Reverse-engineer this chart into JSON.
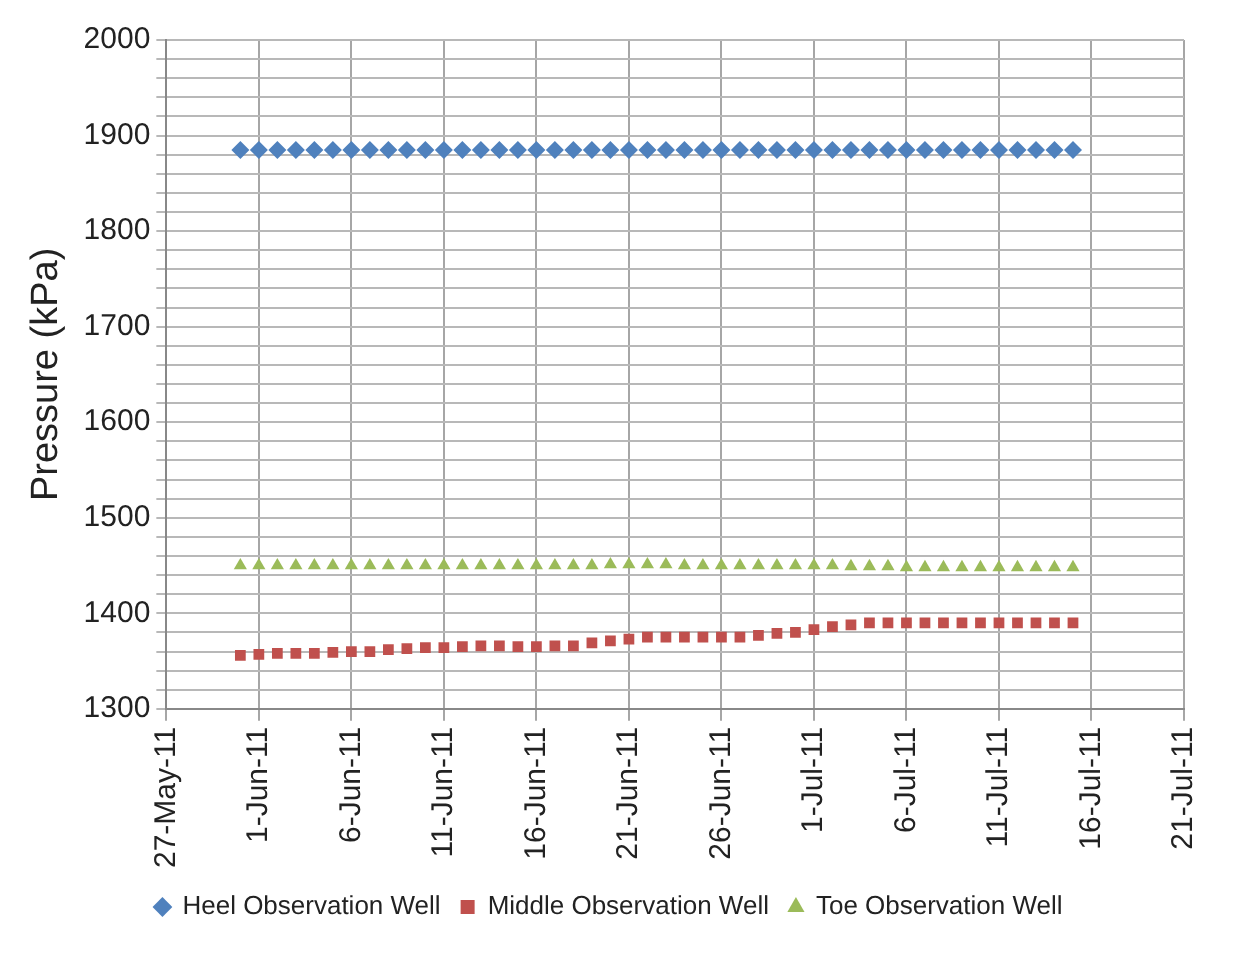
{
  "chart_data": {
    "type": "scatter",
    "ylabel": "Pressure (kPa)",
    "x": [
      "--05-31",
      "--06-01",
      "--06-02",
      "--06-03",
      "--06-04",
      "--06-05",
      "--06-06",
      "--06-07",
      "--06-08",
      "--06-09",
      "--06-10",
      "--06-11",
      "--06-12",
      "--06-13",
      "--06-14",
      "--06-15",
      "--06-16",
      "--06-17",
      "--06-18",
      "--06-19",
      "--06-20",
      "--06-21",
      "--06-22",
      "--06-23",
      "--06-24",
      "--06-25",
      "--06-26",
      "--06-27",
      "--06-28",
      "--06-29",
      "--06-30",
      "--07-01",
      "--07-02",
      "--07-03",
      "--07-04",
      "--07-05",
      "--07-06",
      "--07-07",
      "--07-08",
      "--07-09",
      "--07-10",
      "--07-11",
      "--07-12",
      "--07-13",
      "--07-14",
      "--07-15"
    ],
    "series": [
      {
        "name": "Heel Observation Well",
        "color": "#4f81bd",
        "marker": "diamond",
        "values": [
          1885,
          1885,
          1885,
          1885,
          1885,
          1885,
          1885,
          1885,
          1885,
          1885,
          1885,
          1885,
          1885,
          1885,
          1885,
          1885,
          1885,
          1885,
          1885,
          1885,
          1885,
          1885,
          1885,
          1885,
          1885,
          1885,
          1885,
          1885,
          1885,
          1885,
          1885,
          1885,
          1885,
          1885,
          1885,
          1885,
          1885,
          1885,
          1885,
          1885,
          1885,
          1885,
          1885,
          1885,
          1885,
          1885
        ]
      },
      {
        "name": "Middle Observation Well",
        "color": "#c0504d",
        "marker": "square",
        "values": [
          1356,
          1357,
          1358,
          1358,
          1358,
          1359,
          1360,
          1360,
          1362,
          1363,
          1364,
          1364,
          1365,
          1366,
          1366,
          1365,
          1365,
          1366,
          1366,
          1369,
          1371,
          1373,
          1375,
          1375,
          1375,
          1375,
          1375,
          1375,
          1377,
          1379,
          1380,
          1383,
          1386,
          1388,
          1390,
          1390,
          1390,
          1390,
          1390,
          1390,
          1390,
          1390,
          1390,
          1390,
          1390,
          1390
        ]
      },
      {
        "name": "Toe Observation Well",
        "color": "#9bbb59",
        "marker": "triangle",
        "values": [
          1450,
          1450,
          1450,
          1450,
          1450,
          1450,
          1450,
          1450,
          1450,
          1450,
          1450,
          1450,
          1450,
          1450,
          1450,
          1450,
          1450,
          1450,
          1450,
          1450,
          1451,
          1451,
          1451,
          1451,
          1450,
          1450,
          1450,
          1450,
          1450,
          1450,
          1450,
          1450,
          1450,
          1449,
          1449,
          1449,
          1448,
          1448,
          1448,
          1448,
          1448,
          1448,
          1448,
          1448,
          1448,
          1448
        ]
      }
    ],
    "xlim": [
      "--05-27",
      "--07-21"
    ],
    "xticks": [
      {
        "value": "--05-27",
        "label": "27-May-11"
      },
      {
        "value": "--06-01",
        "label": "1-Jun-11"
      },
      {
        "value": "--06-06",
        "label": "6-Jun-11"
      },
      {
        "value": "--06-11",
        "label": "11-Jun-11"
      },
      {
        "value": "--06-16",
        "label": "16-Jun-11"
      },
      {
        "value": "--06-21",
        "label": "21-Jun-11"
      },
      {
        "value": "--06-26",
        "label": "26-Jun-11"
      },
      {
        "value": "--07-01",
        "label": "1-Jul-11"
      },
      {
        "value": "--07-06",
        "label": "6-Jul-11"
      },
      {
        "value": "--07-11",
        "label": "11-Jul-11"
      },
      {
        "value": "--07-16",
        "label": "16-Jul-11"
      },
      {
        "value": "--07-21",
        "label": "21-Jul-11"
      }
    ],
    "ylim": [
      1300,
      2000
    ],
    "yticks": [
      1300,
      {
        "value": 1320,
        "label": null
      },
      {
        "value": 1340,
        "label": null
      },
      {
        "value": 1360,
        "label": null
      },
      {
        "value": 1380,
        "label": null
      },
      1400,
      {
        "value": 1420,
        "label": null
      },
      {
        "value": 1440,
        "label": null
      },
      {
        "value": 1460,
        "label": null
      },
      {
        "value": 1480,
        "label": null
      },
      1500,
      {
        "value": 1520,
        "label": null
      },
      {
        "value": 1540,
        "label": null
      },
      {
        "value": 1560,
        "label": null
      },
      {
        "value": 1580,
        "label": null
      },
      1600,
      {
        "value": 1620,
        "label": null
      },
      {
        "value": 1640,
        "label": null
      },
      {
        "value": 1660,
        "label": null
      },
      {
        "value": 1680,
        "label": null
      },
      1700,
      {
        "value": 1720,
        "label": null
      },
      {
        "value": 1740,
        "label": null
      },
      {
        "value": 1760,
        "label": null
      },
      {
        "value": 1780,
        "label": null
      },
      1800,
      {
        "value": 1820,
        "label": null
      },
      {
        "value": 1840,
        "label": null
      },
      {
        "value": 1860,
        "label": null
      },
      {
        "value": 1880,
        "label": null
      },
      1900,
      {
        "value": 1920,
        "label": null
      },
      {
        "value": 1940,
        "label": null
      },
      {
        "value": 1960,
        "label": null
      },
      {
        "value": 1980,
        "label": null
      },
      2000
    ],
    "grid": true,
    "legend": "bottom"
  }
}
